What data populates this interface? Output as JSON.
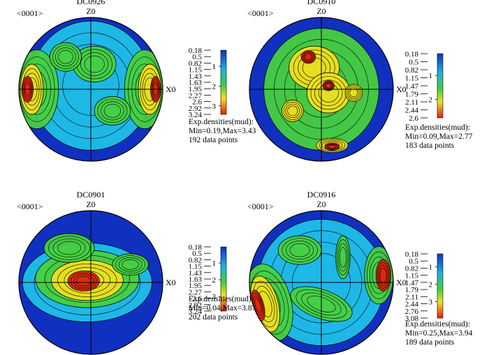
{
  "chart_data": [
    {
      "type": "heatmap",
      "title": "DC0926",
      "projection_label": "<0001>",
      "axis_labels": {
        "top": "Z0",
        "right": "X0"
      },
      "contour_levels": [
        "0.18",
        "0.5",
        "0.82",
        "1.15",
        "1.43",
        "1.63",
        "1.95",
        "2.27",
        "2.6",
        "2.92",
        "3.24"
      ],
      "colorbar_ticks": [
        "1",
        "2",
        "3"
      ],
      "density_label": "Exp.densities(mud):",
      "min": 0.19,
      "max": 3.43,
      "stats_text": "Min=0.19,Max=3.43",
      "points_text": "192 data points",
      "color_low": "#1030c0",
      "color_high": "#e02010"
    },
    {
      "type": "heatmap",
      "title": "DC0910",
      "projection_label": "<0001>",
      "axis_labels": {
        "top": "Z0",
        "right": "X0"
      },
      "contour_levels": [
        "0.18",
        "0.5",
        "0.82",
        "1.15",
        "1.47",
        "1.79",
        "2.11",
        "2.44",
        "2.6"
      ],
      "colorbar_ticks": [
        "1",
        "2"
      ],
      "density_label": "Exp.densities(mud):",
      "min": 0.09,
      "max": 2.77,
      "stats_text": "Min=0.09,Max=2.77",
      "points_text": "183 data points",
      "color_low": "#1030c0",
      "color_high": "#e02010"
    },
    {
      "type": "heatmap",
      "title": "DC0901",
      "projection_label": "<0001>",
      "axis_labels": {
        "top": "Z0",
        "right": "X0"
      },
      "contour_levels": [
        "0.18",
        "0.5",
        "0.82",
        "1.15",
        "1.43",
        "1.63",
        "1.95",
        "2.27",
        "2.6",
        "2.92",
        "3.24"
      ],
      "colorbar_ticks": [
        "1",
        "2",
        "3"
      ],
      "density_label": "Exp.densities(mud):",
      "min": 0.04,
      "max": 3.87,
      "stats_text": "Min=0.04,Max=3.87",
      "points_text": "202 data points",
      "color_low": "#1030c0",
      "color_high": "#e02010"
    },
    {
      "type": "heatmap",
      "title": "DC0916",
      "projection_label": "<0001>",
      "axis_labels": {
        "top": "Z0",
        "right": "X0"
      },
      "contour_levels": [
        "0.18",
        "0.5",
        "0.82",
        "1.15",
        "1.47",
        "1.79",
        "2.11",
        "2.44",
        "2.76",
        "3.08"
      ],
      "colorbar_ticks": [
        "1",
        "2",
        "3"
      ],
      "density_label": "Exp.densities(mud):",
      "min": 0.25,
      "max": 3.94,
      "stats_text": "Min=0.25,Max=3.94",
      "points_text": "189 data points",
      "color_low": "#1030c0",
      "color_high": "#e02010"
    }
  ]
}
